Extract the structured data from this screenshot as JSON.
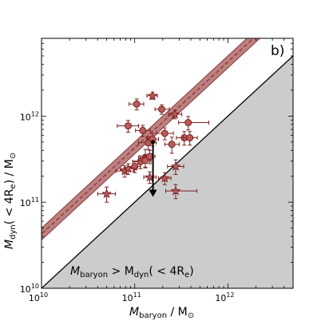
{
  "chart_data": {
    "type": "scatter",
    "panel_label": "b)",
    "xlabel": {
      "main": "M",
      "sub": "baryon",
      "unit": " / M",
      "unit_sub": "⊙"
    },
    "ylabel": {
      "main": "M",
      "sub": "dyn",
      "rest": "( < 4R",
      "sub2": "e",
      "close": ")",
      "unit": " / M",
      "unit_sub": "⊙"
    },
    "annotation": {
      "a": "M",
      "a_sub": "baryon",
      "mid": " > M",
      "b_sub": "dyn",
      "rest": "( < 4R",
      "e_sub": "e",
      "close": ")"
    },
    "x_scale": "log",
    "y_scale": "log",
    "xlim": [
      10000000000.0,
      5000000000000.0
    ],
    "ylim": [
      10000000000.0,
      8000000000000.0
    ],
    "x_tick_labels": [
      {
        "base": "10",
        "exp": "10",
        "value": 10000000000.0
      },
      {
        "base": "10",
        "exp": "11",
        "value": 100000000000.0
      },
      {
        "base": "10",
        "exp": "12",
        "value": 1000000000000.0
      }
    ],
    "y_tick_labels": [
      {
        "base": "10",
        "exp": "10",
        "value": 10000000000.0
      },
      {
        "base": "10",
        "exp": "11",
        "value": 100000000000.0
      },
      {
        "base": "10",
        "exp": "12",
        "value": 1000000000000.0
      }
    ],
    "colors": {
      "marker_fill": "#b85c5c",
      "marker_edge": "#7a1f1f",
      "band": "#a65555",
      "band_edge": "#7a1f1f",
      "fit_line": "#7a1f1f",
      "excluded_region": "#cccccc",
      "arrow": "#000000"
    },
    "fit_relation": {
      "slope": 1.0,
      "offset_dex": 0.63,
      "band_halfwidth_dex": 0.07
    },
    "one_to_one_line": true,
    "circles": [
      {
        "x": 85000000000.0,
        "y": 770000000000.0,
        "xerr": [
          20000000000.0,
          25000000000.0
        ],
        "yerr": [
          120000000000.0,
          120000000000.0
        ]
      },
      {
        "x": 105000000000.0,
        "y": 1380000000000.0,
        "xerr": [
          18000000000.0,
          20000000000.0
        ],
        "yerr": [
          200000000000.0,
          200000000000.0
        ]
      },
      {
        "x": 122000000000.0,
        "y": 680000000000.0,
        "xerr": [
          20000000000.0,
          25000000000.0
        ],
        "yerr": [
          100000000000.0,
          100000000000.0
        ]
      },
      {
        "x": 130000000000.0,
        "y": 330000000000.0,
        "xerr": [
          20000000000.0,
          25000000000.0
        ],
        "yerr": [
          80000000000.0,
          80000000000.0
        ]
      },
      {
        "x": 140000000000.0,
        "y": 490000000000.0,
        "xerr": [
          30000000000.0,
          30000000000.0
        ],
        "yerr": [
          80000000000.0,
          80000000000.0
        ]
      },
      {
        "x": 155000000000.0,
        "y": 540000000000.0,
        "xerr": [
          20000000000.0,
          25000000000.0
        ],
        "yerr": [
          90000000000.0,
          90000000000.0
        ]
      },
      {
        "x": 195000000000.0,
        "y": 1200000000000.0,
        "xerr": [
          30000000000.0,
          40000000000.0
        ],
        "yerr": [
          150000000000.0,
          150000000000.0
        ]
      },
      {
        "x": 210000000000.0,
        "y": 630000000000.0,
        "xerr": [
          40000000000.0,
          50000000000.0
        ],
        "yerr": [
          100000000000.0,
          100000000000.0
        ]
      },
      {
        "x": 250000000000.0,
        "y": 470000000000.0,
        "xerr": [
          40000000000.0,
          50000000000.0
        ],
        "yerr": [
          100000000000.0,
          100000000000.0
        ]
      },
      {
        "x": 340000000000.0,
        "y": 560000000000.0,
        "xerr": [
          60000000000.0,
          70000000000.0
        ],
        "yerr": [
          100000000000.0,
          100000000000.0
        ]
      },
      {
        "x": 375000000000.0,
        "y": 840000000000.0,
        "xerr": [
          80000000000.0,
          250000000000.0
        ],
        "yerr": [
          150000000000.0,
          150000000000.0
        ]
      },
      {
        "x": 390000000000.0,
        "y": 560000000000.0,
        "xerr": [
          60000000000.0,
          80000000000.0
        ],
        "yerr": [
          100000000000.0,
          100000000000.0
        ]
      },
      {
        "x": 115000000000.0,
        "y": 295000000000.0,
        "xerr": [
          20000000000.0,
          20000000000.0
        ],
        "yerr": [
          50000000000.0,
          50000000000.0
        ]
      },
      {
        "x": 130000000000.0,
        "y": 305000000000.0,
        "xerr": [
          20000000000.0,
          20000000000.0
        ],
        "yerr": [
          50000000000.0,
          50000000000.0
        ]
      },
      {
        "x": 145000000000.0,
        "y": 340000000000.0,
        "xerr": [
          20000000000.0,
          20000000000.0
        ],
        "yerr": [
          60000000000.0,
          60000000000.0
        ]
      },
      {
        "x": 100000000000.0,
        "y": 260000000000.0,
        "xerr": [
          15000000000.0,
          15000000000.0
        ],
        "yerr": [
          40000000000.0,
          40000000000.0
        ]
      }
    ],
    "stars": [
      {
        "x": 50000000000.0,
        "y": 125000000000.0,
        "xerr": [
          10000000000.0,
          12000000000.0
        ],
        "yerr": [
          25000000000.0,
          25000000000.0
        ]
      },
      {
        "x": 78000000000.0,
        "y": 230000000000.0,
        "xerr": [
          15000000000.0,
          20000000000.0
        ],
        "yerr": [
          35000000000.0,
          35000000000.0
        ]
      },
      {
        "x": 85000000000.0,
        "y": 245000000000.0,
        "xerr": [
          15000000000.0,
          20000000000.0
        ],
        "yerr": [
          35000000000.0,
          35000000000.0
        ]
      },
      {
        "x": 155000000000.0,
        "y": 1720000000000.0,
        "xerr": [
          20000000000.0,
          20000000000.0
        ],
        "yerr": [
          150000000000.0,
          150000000000.0
        ]
      },
      {
        "x": 145000000000.0,
        "y": 195000000000.0,
        "xerr": [
          20000000000.0,
          25000000000.0
        ],
        "yerr": [
          30000000000.0,
          30000000000.0
        ]
      },
      {
        "x": 210000000000.0,
        "y": 190000000000.0,
        "xerr": [
          30000000000.0,
          35000000000.0
        ],
        "yerr": [
          30000000000.0,
          30000000000.0
        ]
      },
      {
        "x": 270000000000.0,
        "y": 1050000000000.0,
        "xerr": [
          40000000000.0,
          50000000000.0
        ],
        "yerr": [
          120000000000.0,
          120000000000.0
        ]
      },
      {
        "x": 275000000000.0,
        "y": 260000000000.0,
        "xerr": [
          50000000000.0,
          60000000000.0
        ],
        "yerr": [
          50000000000.0,
          50000000000.0
        ]
      },
      {
        "x": 275000000000.0,
        "y": 135000000000.0,
        "xerr": [
          60000000000.0,
          190000000000.0
        ],
        "yerr": [
          25000000000.0,
          25000000000.0
        ]
      }
    ],
    "upper_limit": {
      "x": 157000000000.0,
      "y_top": 500000000000.0,
      "y_bottom": 115000000000.0
    }
  }
}
